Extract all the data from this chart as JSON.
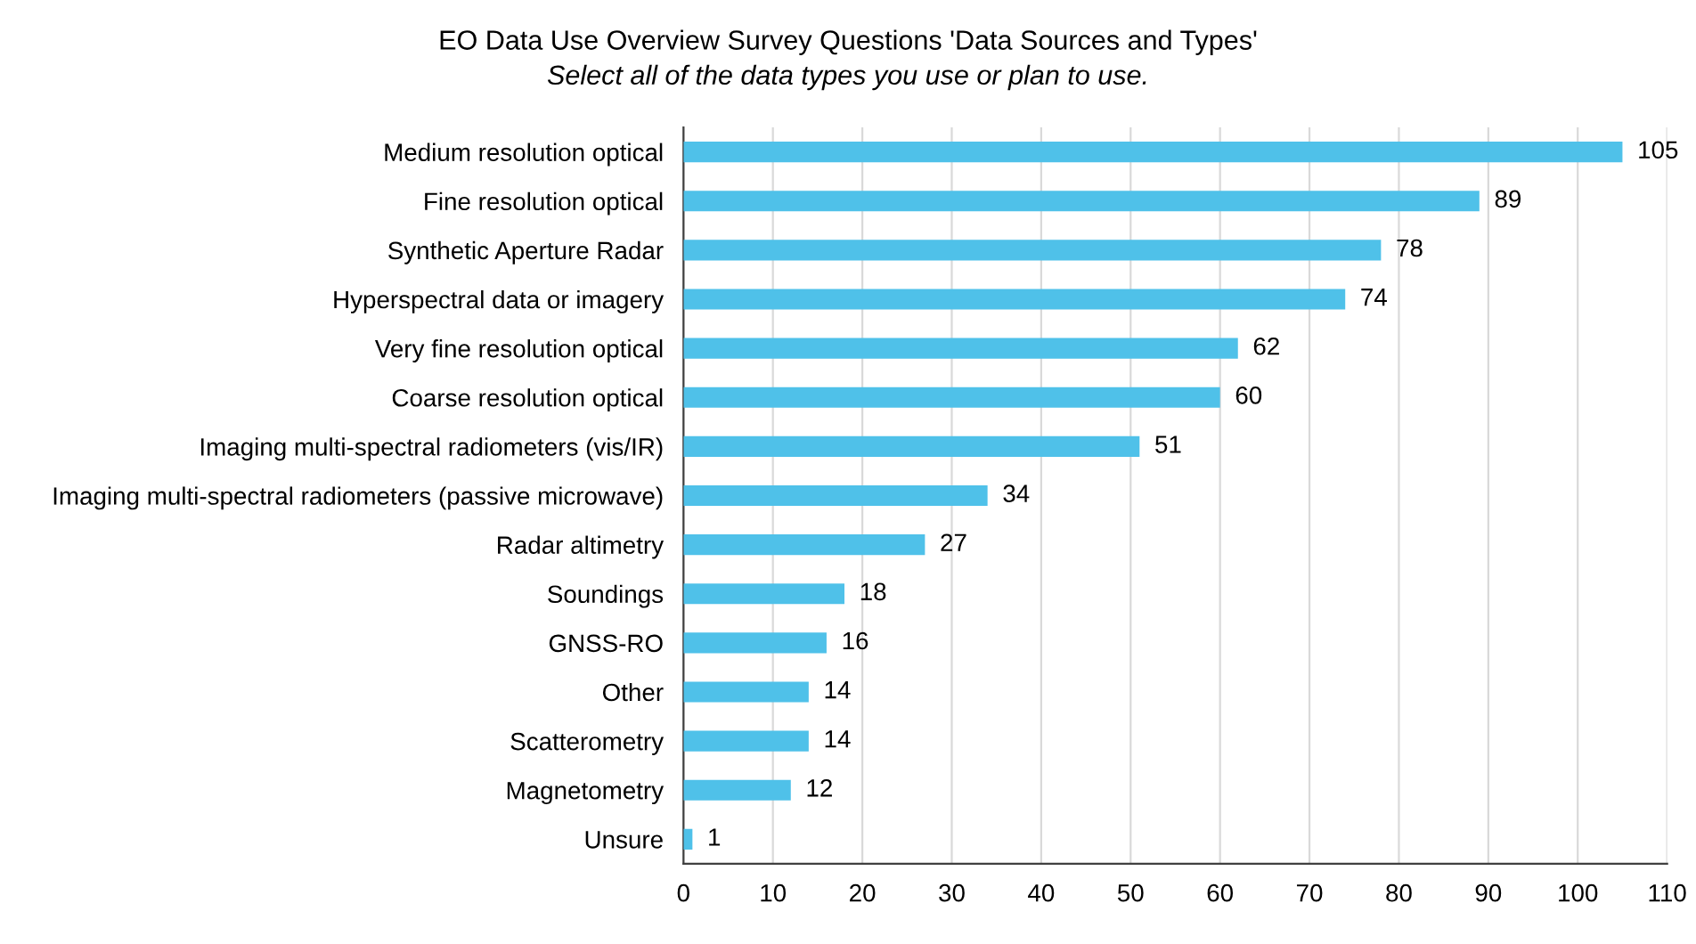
{
  "chart_data": {
    "type": "bar",
    "orientation": "horizontal",
    "title": "EO Data Use Overview Survey Questions 'Data Sources and Types'",
    "subtitle": "Select all of the data types you use or plan to use.",
    "categories": [
      "Medium resolution optical",
      "Fine resolution optical",
      "Synthetic Aperture Radar",
      "Hyperspectral data or imagery",
      "Very fine resolution optical",
      "Coarse resolution optical",
      "Imaging multi-spectral radiometers (vis/IR)",
      "Imaging multi-spectral radiometers (passive microwave)",
      "Radar altimetry",
      "Soundings",
      "GNSS-RO",
      "Other",
      "Scatterometry",
      "Magnetometry",
      "Unsure"
    ],
    "values": [
      105,
      89,
      78,
      74,
      62,
      60,
      51,
      34,
      27,
      18,
      16,
      14,
      14,
      12,
      1
    ],
    "color": "#4fc1e9",
    "xlim": [
      0,
      110
    ],
    "xticks": [
      0,
      10,
      20,
      30,
      40,
      50,
      60,
      70,
      80,
      90,
      100,
      110
    ],
    "grid": "x",
    "data_labels": true
  }
}
